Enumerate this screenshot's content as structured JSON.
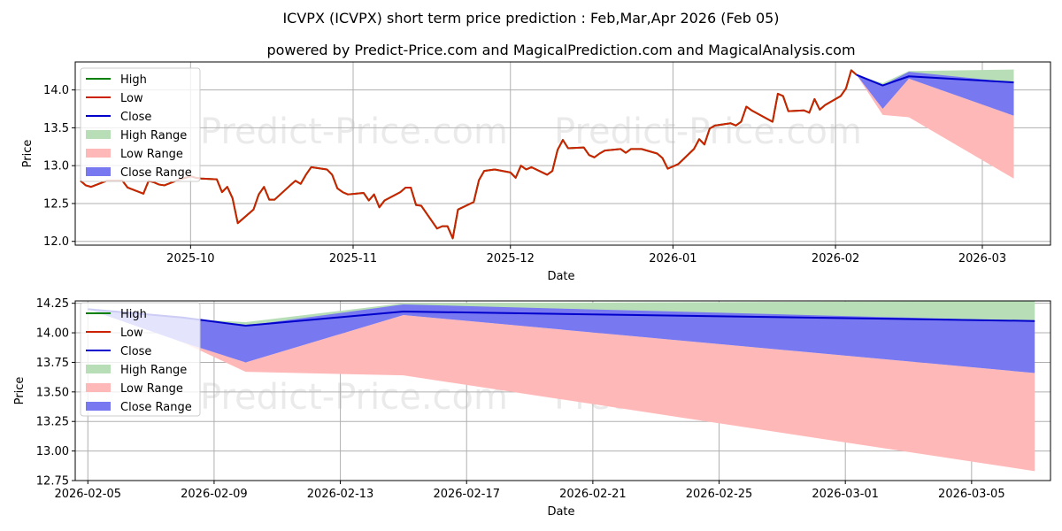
{
  "title": "ICVPX (ICVPX) short term price prediction : Feb,Mar,Apr 2026 (Feb 05)",
  "subtitle": "powered by Predict-Price.com and MagicalPrediction.com and MagicalAnalysis.com",
  "watermark": "Predict-Price.com",
  "colors": {
    "high": "#008000",
    "low": "#cc2200",
    "close": "#0000cc",
    "high_range": "#b8deb8",
    "low_range": "#ffb8b8",
    "close_range": "#7878f0",
    "grid": "#b0b0b0"
  },
  "chart_data": [
    {
      "type": "line",
      "id": "top",
      "xlabel": "Date",
      "ylabel": "Price",
      "grid": true,
      "legend_position": "top-left",
      "xlim": [
        "2025-09-09",
        "2026-03-14"
      ],
      "ylim": [
        11.95,
        14.37
      ],
      "yticks": [
        "12.0",
        "12.5",
        "13.0",
        "13.5",
        "14.0"
      ],
      "xticks": [
        "2025-10",
        "2025-11",
        "2025-12",
        "2026-01",
        "2026-02",
        "2026-03"
      ],
      "legend": [
        "High",
        "Low",
        "Close",
        "High Range",
        "Low Range",
        "Close Range"
      ],
      "history": {
        "x": [
          "2025-09-10",
          "2025-09-11",
          "2025-09-12",
          "2025-09-15",
          "2025-09-16",
          "2025-09-17",
          "2025-09-18",
          "2025-09-19",
          "2025-09-22",
          "2025-09-23",
          "2025-09-24",
          "2025-09-25",
          "2025-09-26",
          "2025-09-29",
          "2025-09-30",
          "2025-10-01",
          "2025-10-02",
          "2025-10-03",
          "2025-10-06",
          "2025-10-07",
          "2025-10-08",
          "2025-10-09",
          "2025-10-10",
          "2025-10-13",
          "2025-10-14",
          "2025-10-15",
          "2025-10-16",
          "2025-10-17",
          "2025-10-20",
          "2025-10-21",
          "2025-10-22",
          "2025-10-23",
          "2025-10-24",
          "2025-10-27",
          "2025-10-28",
          "2025-10-29",
          "2025-10-30",
          "2025-10-31",
          "2025-11-03",
          "2025-11-04",
          "2025-11-05",
          "2025-11-06",
          "2025-11-07",
          "2025-11-10",
          "2025-11-11",
          "2025-11-12",
          "2025-11-13",
          "2025-11-14",
          "2025-11-17",
          "2025-11-18",
          "2025-11-19",
          "2025-11-20",
          "2025-11-21",
          "2025-11-24",
          "2025-11-25",
          "2025-11-26",
          "2025-11-28",
          "2025-12-01",
          "2025-12-02",
          "2025-12-03",
          "2025-12-04",
          "2025-12-05",
          "2025-12-08",
          "2025-12-09",
          "2025-12-10",
          "2025-12-11",
          "2025-12-12",
          "2025-12-15",
          "2025-12-16",
          "2025-12-17",
          "2025-12-18",
          "2025-12-19",
          "2025-12-22",
          "2025-12-23",
          "2025-12-24",
          "2025-12-26",
          "2025-12-29",
          "2025-12-30",
          "2025-12-31",
          "2026-01-02",
          "2026-01-05",
          "2026-01-06",
          "2026-01-07",
          "2026-01-08",
          "2026-01-09",
          "2026-01-12",
          "2026-01-13",
          "2026-01-14",
          "2026-01-15",
          "2026-01-16",
          "2026-01-20",
          "2026-01-21",
          "2026-01-22",
          "2026-01-23",
          "2026-01-26",
          "2026-01-27",
          "2026-01-28",
          "2026-01-29",
          "2026-01-30",
          "2026-02-02",
          "2026-02-03",
          "2026-02-04",
          "2026-02-05"
        ],
        "low": [
          12.8,
          12.74,
          12.72,
          12.8,
          12.8,
          12.8,
          12.8,
          12.71,
          12.63,
          12.8,
          12.78,
          12.75,
          12.74,
          12.82,
          12.84,
          12.86,
          12.84,
          12.83,
          12.82,
          12.65,
          12.72,
          12.57,
          12.24,
          12.42,
          12.62,
          12.72,
          12.55,
          12.55,
          12.74,
          12.8,
          12.76,
          12.88,
          12.98,
          12.95,
          12.88,
          12.7,
          12.65,
          12.62,
          12.64,
          12.54,
          12.62,
          12.45,
          12.54,
          12.65,
          12.71,
          12.71,
          12.48,
          12.47,
          12.17,
          12.2,
          12.2,
          12.04,
          12.42,
          12.52,
          12.81,
          12.93,
          12.95,
          12.91,
          12.84,
          13.0,
          12.95,
          12.98,
          12.88,
          12.93,
          13.21,
          13.34,
          13.23,
          13.24,
          13.14,
          13.11,
          13.16,
          13.2,
          13.22,
          13.17,
          13.22,
          13.22,
          13.16,
          13.1,
          12.96,
          13.02,
          13.22,
          13.35,
          13.28,
          13.49,
          13.53,
          13.56,
          13.53,
          13.58,
          13.78,
          13.73,
          13.58,
          13.95,
          13.92,
          13.72,
          13.73,
          13.7,
          13.88,
          13.74,
          13.8,
          13.92,
          14.02,
          14.26,
          14.2
        ],
        "high": [
          12.8,
          12.74,
          12.72,
          12.8,
          12.8,
          12.8,
          12.8,
          12.71,
          12.63,
          12.8,
          12.78,
          12.75,
          12.74,
          12.82,
          12.84,
          12.86,
          12.84,
          12.83,
          12.82,
          12.65,
          12.72,
          12.57,
          12.24,
          12.42,
          12.62,
          12.72,
          12.55,
          12.55,
          12.74,
          12.8,
          12.76,
          12.88,
          12.98,
          12.95,
          12.88,
          12.7,
          12.65,
          12.62,
          12.64,
          12.54,
          12.62,
          12.45,
          12.54,
          12.65,
          12.71,
          12.71,
          12.48,
          12.47,
          12.17,
          12.2,
          12.2,
          12.04,
          12.42,
          12.52,
          12.81,
          12.93,
          12.95,
          12.91,
          12.84,
          13.0,
          12.95,
          12.98,
          12.88,
          12.93,
          13.21,
          13.34,
          13.23,
          13.24,
          13.14,
          13.11,
          13.16,
          13.2,
          13.22,
          13.17,
          13.22,
          13.22,
          13.16,
          13.1,
          12.96,
          13.02,
          13.22,
          13.35,
          13.28,
          13.49,
          13.53,
          13.56,
          13.53,
          13.58,
          13.78,
          13.73,
          13.58,
          13.95,
          13.92,
          13.72,
          13.73,
          13.7,
          13.88,
          13.74,
          13.8,
          13.92,
          14.02,
          14.26,
          14.2
        ]
      },
      "forecast": {
        "x": [
          "2026-02-05",
          "2026-02-10",
          "2026-02-15",
          "2026-03-07"
        ],
        "high": [
          14.2,
          14.09,
          14.25,
          14.27
        ],
        "low": [
          14.2,
          13.67,
          13.64,
          12.83
        ],
        "close": [
          14.2,
          14.06,
          14.18,
          14.1
        ],
        "close_lower": [
          14.2,
          13.75,
          14.15,
          13.66
        ],
        "close_upper": [
          14.2,
          14.06,
          14.24,
          14.1
        ]
      }
    },
    {
      "type": "line",
      "id": "bottom",
      "xlabel": "Date",
      "ylabel": "Price",
      "grid": true,
      "legend_position": "top-left",
      "xlim": [
        "2026-02-04.6",
        "2026-03-07.5"
      ],
      "ylim": [
        12.75,
        14.27
      ],
      "yticks": [
        "12.75",
        "13.00",
        "13.25",
        "13.50",
        "13.75",
        "14.00",
        "14.25"
      ],
      "xticks": [
        "2026-02-05",
        "2026-02-09",
        "2026-02-13",
        "2026-02-17",
        "2026-02-21",
        "2026-02-25",
        "2026-03-01",
        "2026-03-05"
      ],
      "legend": [
        "High",
        "Low",
        "Close",
        "High Range",
        "Low Range",
        "Close Range"
      ],
      "forecast": {
        "x": [
          "2026-02-05",
          "2026-02-08",
          "2026-02-10",
          "2026-02-15",
          "2026-03-07"
        ],
        "high": [
          14.2,
          14.12,
          14.09,
          14.25,
          14.27
        ],
        "low": [
          14.2,
          13.92,
          13.67,
          13.64,
          12.83
        ],
        "close": [
          14.2,
          14.13,
          14.06,
          14.18,
          14.1
        ],
        "close_lower": [
          14.2,
          13.92,
          13.75,
          14.15,
          13.66
        ],
        "close_upper": [
          14.2,
          14.13,
          14.06,
          14.24,
          14.1
        ]
      }
    }
  ]
}
